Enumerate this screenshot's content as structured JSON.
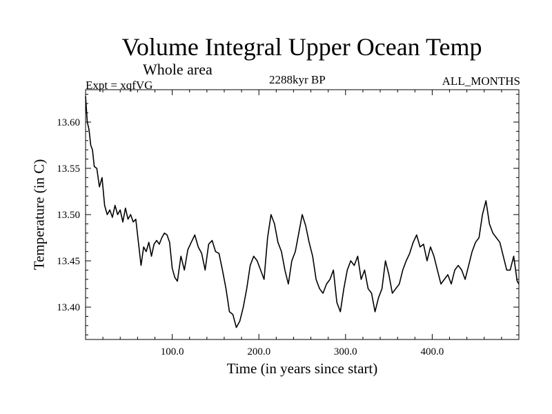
{
  "chart_data": {
    "type": "line",
    "title": "Volume Integral Upper Ocean Temp",
    "subtitle": "Whole area",
    "experiment_label": "Expt = xqfVG",
    "period_label": "2288kyr BP",
    "months_label": "ALL_MONTHS",
    "xlabel": "Time (in years since start)",
    "ylabel": "Temperature (in C)",
    "xlim": [
      0,
      500
    ],
    "ylim": [
      13.365,
      13.635
    ],
    "x_ticks": [
      {
        "value": 100,
        "label": "100.0"
      },
      {
        "value": 200,
        "label": "200.0"
      },
      {
        "value": 300,
        "label": "300.0"
      },
      {
        "value": 400,
        "label": "400.0"
      }
    ],
    "y_ticks": [
      {
        "value": 13.4,
        "label": "13.40"
      },
      {
        "value": 13.45,
        "label": "13.45"
      },
      {
        "value": 13.5,
        "label": "13.50"
      },
      {
        "value": 13.55,
        "label": "13.55"
      },
      {
        "value": 13.6,
        "label": "13.60"
      }
    ],
    "grid": false,
    "series": [
      {
        "name": "Volume integral upper ocean temperature",
        "color": "#000000",
        "x": [
          0,
          2,
          4,
          6,
          8,
          10,
          13,
          16,
          19,
          22,
          25,
          28,
          31,
          34,
          37,
          40,
          43,
          46,
          49,
          52,
          55,
          58,
          61,
          64,
          67,
          70,
          73,
          76,
          79,
          82,
          85,
          88,
          91,
          94,
          97,
          100,
          103,
          106,
          110,
          114,
          118,
          122,
          126,
          130,
          134,
          138,
          142,
          146,
          150,
          154,
          158,
          162,
          166,
          170,
          174,
          178,
          182,
          186,
          190,
          194,
          198,
          202,
          206,
          210,
          214,
          218,
          222,
          226,
          230,
          234,
          238,
          242,
          246,
          250,
          254,
          258,
          262,
          266,
          270,
          274,
          278,
          282,
          286,
          290,
          294,
          298,
          302,
          306,
          310,
          314,
          318,
          322,
          326,
          330,
          334,
          338,
          342,
          346,
          350,
          354,
          358,
          362,
          366,
          370,
          374,
          378,
          382,
          386,
          390,
          394,
          398,
          402,
          406,
          410,
          414,
          418,
          422,
          426,
          430,
          434,
          438,
          442,
          446,
          450,
          454,
          458,
          462,
          466,
          470,
          474,
          478,
          482,
          486,
          490,
          494,
          498,
          500
        ],
        "values": [
          13.628,
          13.6,
          13.592,
          13.575,
          13.57,
          13.552,
          13.55,
          13.53,
          13.54,
          13.51,
          13.5,
          13.505,
          13.497,
          13.51,
          13.5,
          13.505,
          13.492,
          13.507,
          13.495,
          13.5,
          13.492,
          13.495,
          13.47,
          13.445,
          13.465,
          13.46,
          13.47,
          13.455,
          13.468,
          13.472,
          13.468,
          13.475,
          13.48,
          13.478,
          13.47,
          13.442,
          13.432,
          13.428,
          13.455,
          13.44,
          13.462,
          13.47,
          13.478,
          13.465,
          13.458,
          13.44,
          13.468,
          13.472,
          13.46,
          13.458,
          13.44,
          13.42,
          13.395,
          13.392,
          13.378,
          13.385,
          13.4,
          13.42,
          13.445,
          13.455,
          13.45,
          13.44,
          13.43,
          13.475,
          13.5,
          13.49,
          13.47,
          13.46,
          13.44,
          13.425,
          13.45,
          13.46,
          13.48,
          13.5,
          13.488,
          13.47,
          13.455,
          13.43,
          13.42,
          13.415,
          13.425,
          13.43,
          13.44,
          13.405,
          13.395,
          13.42,
          13.44,
          13.45,
          13.445,
          13.455,
          13.43,
          13.44,
          13.42,
          13.415,
          13.395,
          13.41,
          13.42,
          13.45,
          13.435,
          13.415,
          13.42,
          13.425,
          13.44,
          13.45,
          13.458,
          13.47,
          13.478,
          13.465,
          13.468,
          13.45,
          13.465,
          13.455,
          13.44,
          13.425,
          13.43,
          13.435,
          13.425,
          13.44,
          13.445,
          13.44,
          13.43,
          13.445,
          13.46,
          13.47,
          13.475,
          13.5,
          13.515,
          13.49,
          13.48,
          13.475,
          13.47,
          13.455,
          13.44,
          13.44,
          13.455,
          13.428,
          13.425
        ]
      }
    ]
  }
}
